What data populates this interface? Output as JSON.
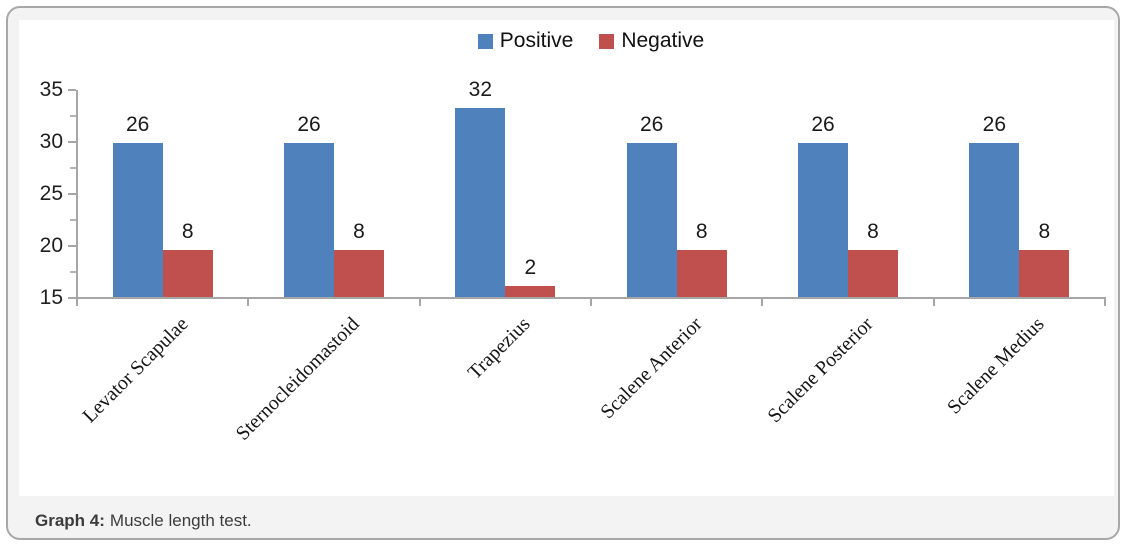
{
  "caption": {
    "prefix": "Graph 4:",
    "text": "Muscle length test."
  },
  "colors": {
    "positive": "#4F81BD",
    "negative": "#C0504D",
    "axis": "#a6a6a6",
    "tick_minor": "#b5b5b5",
    "label_text": "#1a1a1a",
    "caption_text": "#3b3b3b",
    "card_border": "#a8a8a8",
    "card_bg": "#f3f3f3",
    "panel_bg": "#ffffff"
  },
  "chart_data": {
    "type": "bar",
    "title": "",
    "categories": [
      "Levator Scapulae",
      "Sternocleidomastoid",
      "Trapezius",
      "Scalene Anterior",
      "Scalene Posterior",
      "Scalene Medius"
    ],
    "series": [
      {
        "name": "Positive",
        "color": "#4F81BD",
        "values": [
          26,
          26,
          32,
          26,
          26,
          26
        ]
      },
      {
        "name": "Negative",
        "color": "#C0504D",
        "values": [
          8,
          8,
          2,
          8,
          8,
          8
        ]
      }
    ],
    "data_labels": true,
    "legend_position": "top",
    "gridlines": false,
    "y_axis": {
      "tick_labels": [
        "35",
        "30",
        "25",
        "20",
        "15"
      ],
      "minor_ticks": true,
      "displayed_range": [
        15,
        35
      ],
      "bar_scale_max": 35
    },
    "x_axis": {
      "label_rotation_deg": 45
    }
  }
}
